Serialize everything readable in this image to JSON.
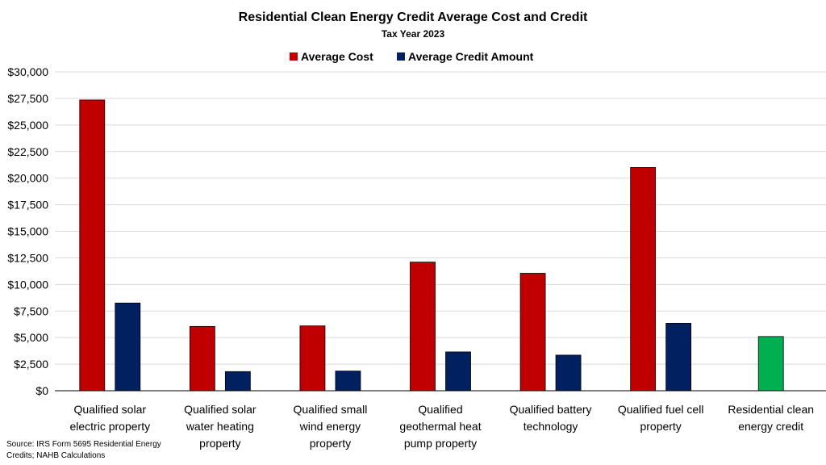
{
  "chart_data": {
    "type": "bar",
    "title": "Residential Clean Energy Credit Average Cost and Credit",
    "subtitle": "Tax Year 2023",
    "categories": [
      [
        "Qualified solar",
        "electric property"
      ],
      [
        "Qualified solar",
        "water heating",
        "property"
      ],
      [
        "Qualified small",
        "wind energy",
        "property"
      ],
      [
        "Qualified",
        "geothermal heat",
        "pump property"
      ],
      [
        "Qualified battery",
        "technology"
      ],
      [
        "Qualified fuel cell",
        "property"
      ],
      [
        "Residential clean",
        "energy credit"
      ]
    ],
    "series": [
      {
        "name": "Average Cost",
        "color": "#C00000",
        "values": [
          27350,
          6050,
          6100,
          12100,
          11050,
          21000,
          null
        ]
      },
      {
        "name": "Average Credit Amount",
        "color": "#002060",
        "values": [
          8250,
          1800,
          1850,
          3650,
          3350,
          6350,
          null
        ]
      },
      {
        "name": "",
        "color": "#00B050",
        "values": [
          null,
          null,
          null,
          null,
          null,
          null,
          5100
        ]
      }
    ],
    "legend": [
      "Average Cost",
      "Average Credit Amount"
    ],
    "ylim": [
      0,
      30000
    ],
    "yticks": [
      "$0",
      "$2,500",
      "$5,000",
      "$7,500",
      "$10,000",
      "$12,500",
      "$15,000",
      "$17,500",
      "$20,000",
      "$22,500",
      "$25,000",
      "$27,500",
      "$30,000"
    ],
    "legend_position": "top-center",
    "grid": true
  },
  "source": [
    "Source: IRS Form 5695  Residential Energy",
    "Credits; NAHB Calculations"
  ]
}
